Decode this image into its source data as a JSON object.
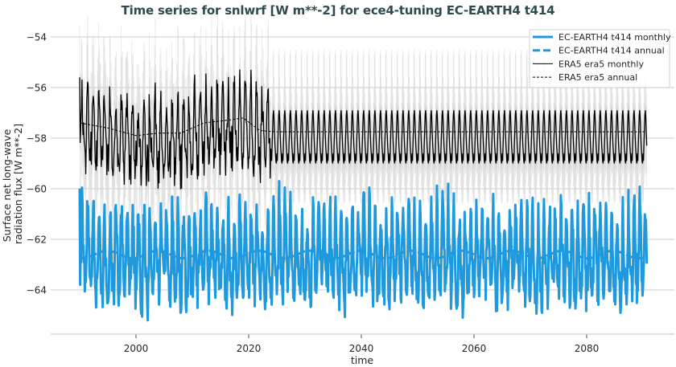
{
  "chart_data": {
    "type": "line",
    "title": "Time series for snlwrf [W m**-2] for ece4-tuning EC-EARTH4 t414",
    "xlabel": "time",
    "ylabel": "Surface net long-wave radiation flux [W m**-2]",
    "ylabel_lines": [
      "Surface net long-wave",
      "radiation flux [W m**-2]"
    ],
    "xlim": [
      1985,
      2095
    ],
    "ylim": [
      -66.0,
      -53.5
    ],
    "x_ticks": [
      2000,
      2020,
      2040,
      2060,
      2080
    ],
    "x_tick_labels": [
      "2000",
      "2020",
      "2040",
      "2060",
      "2080"
    ],
    "y_ticks": [
      -54,
      -56,
      -58,
      -60,
      -62,
      -64
    ],
    "y_tick_labels": [
      "−54",
      "−56",
      "−58",
      "−60",
      "−62",
      "−64"
    ],
    "grid": "horizontal",
    "legend": {
      "position": "upper right",
      "entries": [
        {
          "label": "EC-EARTH4 t414 monthly",
          "color": "#1f99dd",
          "style": "solid",
          "width": 3
        },
        {
          "label": "EC-EARTH4 t414 annual",
          "color": "#1f99dd",
          "style": "dashed",
          "width": 3
        },
        {
          "label": "ERA5 era5 monthly",
          "color": "#000000",
          "style": "solid",
          "width": 1
        },
        {
          "label": "ERA5 era5 annual",
          "color": "#000000",
          "style": "dashed",
          "width": 1
        }
      ]
    },
    "series": [
      {
        "name": "EC-EARTH4 t414 monthly",
        "color": "#1f99dd",
        "x_range": [
          1990,
          2091
        ],
        "seasonal_max_approx": -60.5,
        "seasonal_min_approx": -64.2,
        "overall_max": -59.7,
        "overall_min": -65.2,
        "mean_approx": -62.6
      },
      {
        "name": "EC-EARTH4 t414 annual",
        "color": "#1f99dd",
        "x_range": [
          1990,
          2091
        ],
        "mean_approx": -62.6
      },
      {
        "name": "ERA5 era5 monthly",
        "color": "#000000",
        "x_range": [
          1990,
          2091
        ],
        "note": "observed record 1990-2024, repeating climatology afterward",
        "climatology_max": -56.9,
        "climatology_min": -59.0,
        "overall_max": -55.3,
        "overall_min": -60.0
      },
      {
        "name": "ERA5 era5 annual",
        "color": "#000000",
        "x": [
          1990,
          1995,
          2000,
          2004,
          2008,
          2012,
          2016,
          2019,
          2022,
          2025,
          2050,
          2091
        ],
        "values": [
          -57.4,
          -57.6,
          -57.9,
          -57.8,
          -57.8,
          -57.4,
          -57.3,
          -57.2,
          -57.7,
          -57.75,
          -57.75,
          -57.75
        ]
      }
    ]
  }
}
